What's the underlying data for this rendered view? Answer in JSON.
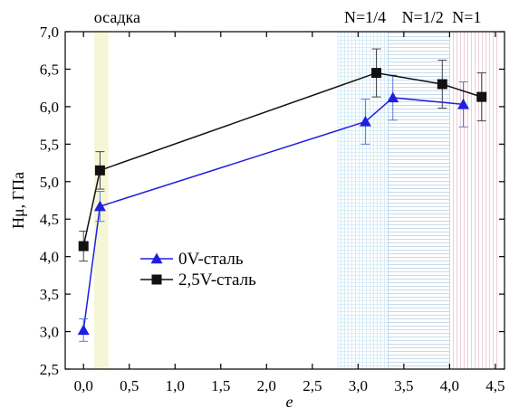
{
  "chart_data": {
    "type": "line",
    "title": "",
    "xlabel": "e",
    "ylabel": "Hμ, ГПа",
    "xlim": [
      -0.2,
      4.6
    ],
    "ylim": [
      2.5,
      7.0
    ],
    "x_ticks": [
      0.0,
      0.5,
      1.0,
      1.5,
      2.0,
      2.5,
      3.0,
      3.5,
      4.0,
      4.5
    ],
    "x_tick_labels": [
      "0,0",
      "0,5",
      "1,0",
      "1,5",
      "2,0",
      "2,5",
      "3,0",
      "3,5",
      "4,0",
      "4,5"
    ],
    "y_ticks": [
      2.5,
      3.0,
      3.5,
      4.0,
      4.5,
      5.0,
      5.5,
      6.0,
      6.5,
      7.0
    ],
    "y_tick_labels": [
      "2,5",
      "3,0",
      "3,5",
      "4,0",
      "4,5",
      "5,0",
      "5,5",
      "6,0",
      "6,5",
      "7,0"
    ],
    "legend_position": "center-left",
    "regions": [
      {
        "label": "осадка",
        "x_start": 0.12,
        "x_end": 0.27,
        "color": "#f3f3c9",
        "pattern": "solid"
      },
      {
        "label": "N=1/4",
        "x_start": 2.78,
        "x_end": 3.33,
        "color": "#a9d6ee",
        "pattern": "grid"
      },
      {
        "label": "N=1/2",
        "x_start": 3.33,
        "x_end": 4.0,
        "color": "#b9d2e8",
        "pattern": "hlines"
      },
      {
        "label": "N=1",
        "x_start": 4.0,
        "x_end": 4.52,
        "color": "#e9c3d2",
        "pattern": "vlines"
      }
    ],
    "series": [
      {
        "name": "0V-сталь",
        "color": "#1f1fe0",
        "marker": "triangle",
        "x": [
          0.0,
          0.18,
          3.08,
          3.38,
          4.15
        ],
        "y": [
          3.02,
          4.67,
          5.8,
          6.12,
          6.03
        ],
        "err": [
          0.15,
          0.2,
          0.3,
          0.3,
          0.3
        ]
      },
      {
        "name": "2,5V-сталь",
        "color": "#111111",
        "marker": "square",
        "x": [
          0.0,
          0.18,
          3.2,
          3.92,
          4.35
        ],
        "y": [
          4.14,
          5.15,
          6.45,
          6.3,
          6.13
        ],
        "err": [
          0.2,
          0.25,
          0.32,
          0.32,
          0.32
        ]
      }
    ]
  }
}
